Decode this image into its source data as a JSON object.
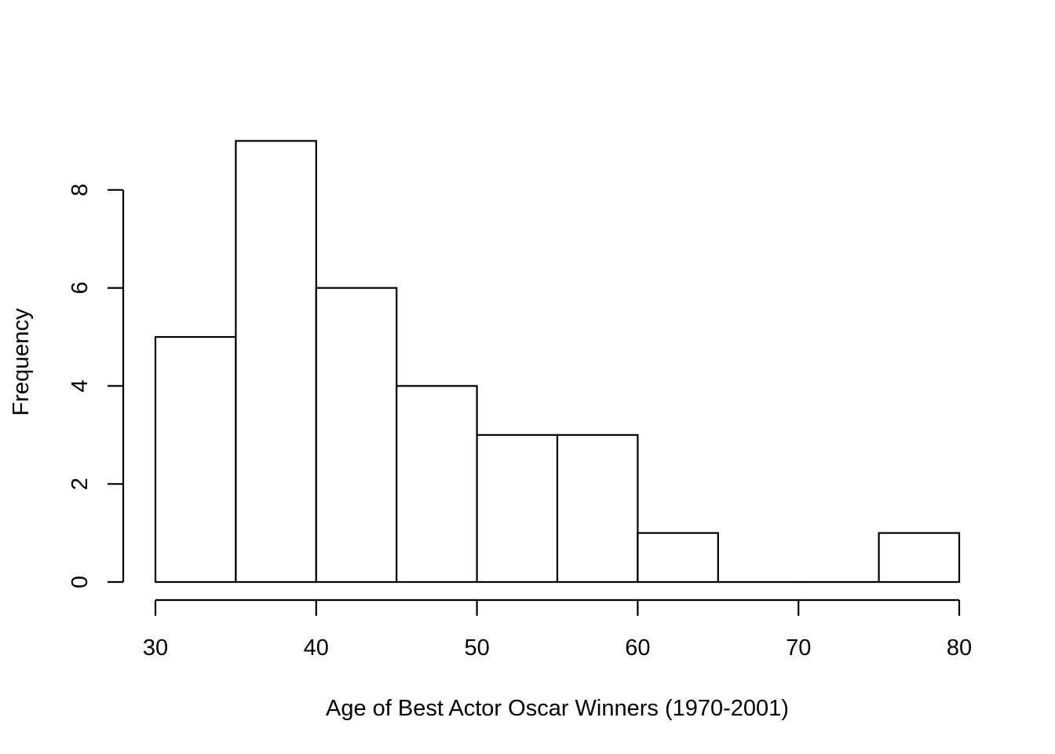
{
  "chart_data": {
    "type": "bar",
    "bin_edges": [
      30,
      35,
      40,
      45,
      50,
      55,
      60,
      65,
      70,
      75,
      80
    ],
    "values": [
      5,
      9,
      6,
      4,
      3,
      3,
      1,
      0,
      0,
      1
    ],
    "xlabel": "Age of Best Actor Oscar Winners (1970-2001)",
    "ylabel": "Frequency",
    "xticks": [
      30,
      40,
      50,
      60,
      70,
      80
    ],
    "yticks": [
      0,
      2,
      4,
      6,
      8
    ],
    "xlim": [
      30,
      80
    ],
    "ylim": [
      0,
      9
    ],
    "grid": false,
    "legend": "none"
  }
}
